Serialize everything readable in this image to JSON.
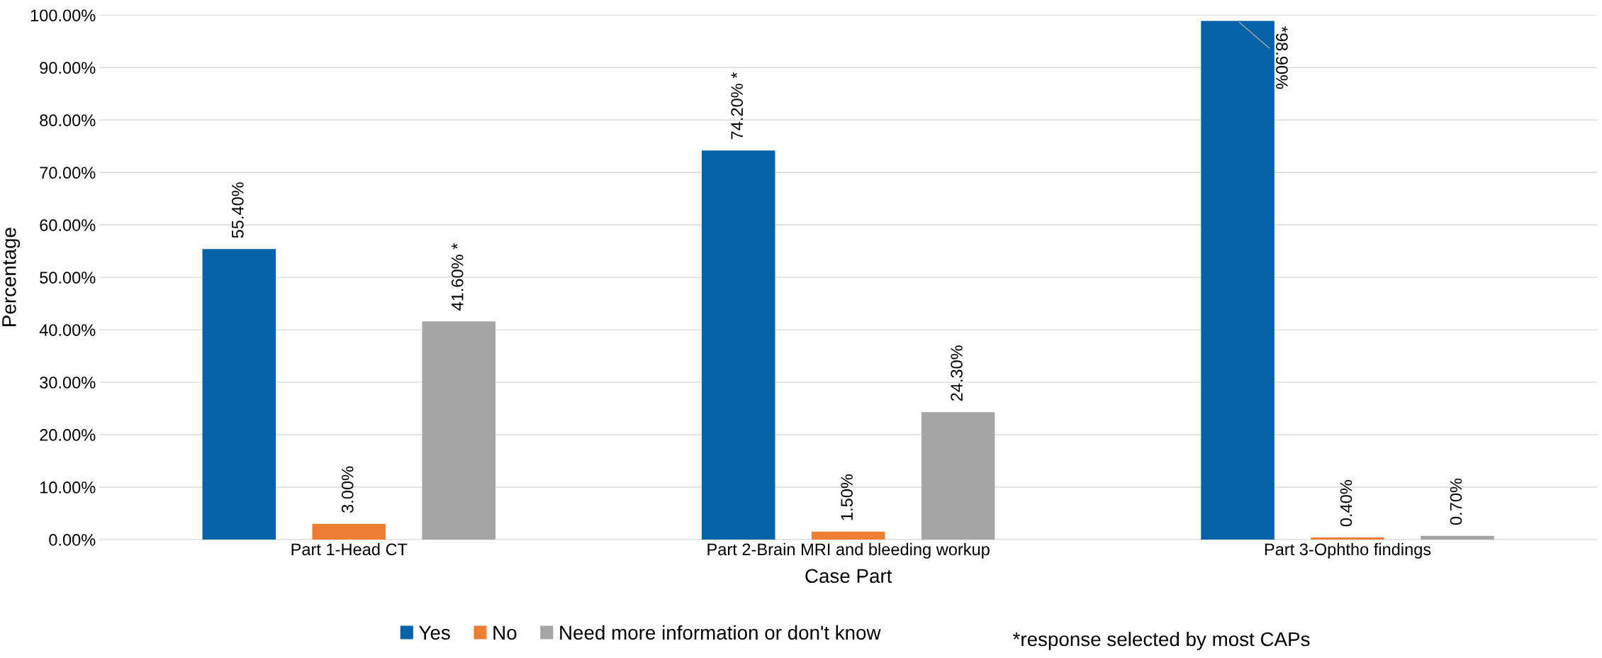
{
  "chart_data": {
    "type": "bar",
    "xlabel": "Case Part",
    "ylabel": "Percentage",
    "categories": [
      "Part 1-Head CT",
      "Part 2-Brain MRI and bleeding workup",
      "Part 3-Ophtho findings"
    ],
    "series": [
      {
        "name": "Yes",
        "color": "#0462a8",
        "values": [
          55.4,
          74.2,
          98.9
        ],
        "value_labels": [
          "55.40%",
          "74.20% *",
          "*98.90%"
        ]
      },
      {
        "name": "No",
        "color": "#ed7d31",
        "values": [
          3.0,
          1.5,
          0.4
        ],
        "value_labels": [
          "3.00%",
          "1.50%",
          "0.40%"
        ]
      },
      {
        "name": "Need more information or don't know",
        "color": "#a5a5a5",
        "values": [
          41.6,
          24.3,
          0.7
        ],
        "value_labels": [
          "41.60% *",
          "24.30%",
          "0.70%"
        ]
      }
    ],
    "ylim": [
      0,
      100
    ],
    "yticks": [
      {
        "value": 0,
        "label": "0.00%"
      },
      {
        "value": 10,
        "label": "10.00%"
      },
      {
        "value": 20,
        "label": "20.00%"
      },
      {
        "value": 30,
        "label": "30.00%"
      },
      {
        "value": 40,
        "label": "40.00%"
      },
      {
        "value": 50,
        "label": "50.00%"
      },
      {
        "value": 60,
        "label": "60.00%"
      },
      {
        "value": 70,
        "label": "70.00%"
      },
      {
        "value": 80,
        "label": "80.00%"
      },
      {
        "value": 90,
        "label": "90.00%"
      },
      {
        "value": 100,
        "label": "100.00%"
      }
    ],
    "grid": "y",
    "legend": "bottom",
    "annotations": [
      "*response selected by most CAPs"
    ]
  }
}
